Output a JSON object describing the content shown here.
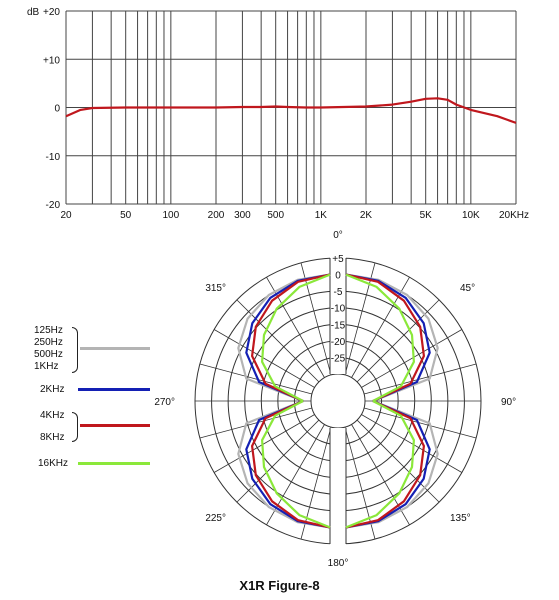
{
  "chart_data": [
    {
      "type": "line",
      "x_scale": "log",
      "xlim": [
        20,
        20000
      ],
      "ylim": [
        -20,
        20
      ],
      "ylabel": "dB",
      "x_ticks": [
        20,
        50,
        100,
        200,
        300,
        500,
        1000,
        2000,
        5000,
        10000,
        20000
      ],
      "x_tick_labels": [
        "20",
        "50",
        "100",
        "200",
        "300",
        "500",
        "1K",
        "2K",
        "5K",
        "10K",
        "20KHz"
      ],
      "y_ticks": [
        20,
        10,
        0,
        -10,
        -20
      ],
      "y_tick_labels": [
        "+20",
        "+10",
        "0",
        "-10",
        "-20"
      ],
      "grid": true,
      "line_color": "#c0171d",
      "series": [
        {
          "x": [
            20,
            25,
            30,
            50,
            100,
            200,
            300,
            400,
            500,
            600,
            800,
            1000,
            2000,
            3000,
            4000,
            5000,
            6000,
            7000,
            8000,
            10000,
            15000,
            20000
          ],
          "values": [
            -1.8,
            -0.5,
            -0.1,
            0,
            0,
            0,
            0.1,
            0.1,
            0.2,
            0.1,
            0,
            0,
            0.2,
            0.6,
            1.2,
            1.8,
            1.9,
            1.6,
            0.6,
            -0.5,
            -1.8,
            -3.2
          ]
        }
      ]
    },
    {
      "type": "polar",
      "angle_labels": [
        "0°",
        "45°",
        "90°",
        "135°",
        "180°",
        "225°",
        "270°",
        "315°"
      ],
      "r_ticks": [
        5,
        0,
        -5,
        -10,
        -15,
        -20,
        -25
      ],
      "r_tick_labels": [
        "+5",
        "0",
        "-5",
        "-10",
        "-15",
        "-20",
        "-25"
      ],
      "rlim": [
        -30,
        5
      ],
      "pattern": "figure-8",
      "series": [
        {
          "name": "125Hz 250Hz 500Hz 1KHz",
          "color": "#b4b4b4",
          "angles": [
            0,
            15,
            30,
            45,
            60,
            75,
            90
          ],
          "values": [
            0,
            -0.3,
            -1.2,
            -3,
            -6.2,
            -12,
            -30
          ]
        },
        {
          "name": "2KHz",
          "color": "#1420b4",
          "angles": [
            0,
            15,
            30,
            45,
            60,
            75,
            90
          ],
          "values": [
            0,
            -0.6,
            -2.2,
            -5,
            -9,
            -16,
            -30
          ]
        },
        {
          "name": "4KHz 8KHz",
          "color": "#c0171d",
          "angles": [
            0,
            15,
            30,
            45,
            60,
            75,
            90
          ],
          "values": [
            0,
            -0.9,
            -3.2,
            -6.5,
            -11,
            -18,
            -30
          ]
        },
        {
          "name": "16KHz",
          "color": "#8be83a",
          "angles": [
            0,
            15,
            30,
            45,
            60,
            75,
            90
          ],
          "values": [
            0,
            -2.5,
            -6,
            -10,
            -14.5,
            -21,
            -30
          ]
        }
      ]
    }
  ],
  "legend": {
    "group1": [
      "125Hz",
      "250Hz",
      "500Hz",
      "1KHz"
    ],
    "group2": [
      "2KHz"
    ],
    "group3": [
      "4KHz",
      "8KHz"
    ],
    "group4": [
      "16KHz"
    ]
  },
  "caption": "X1R Figure-8"
}
